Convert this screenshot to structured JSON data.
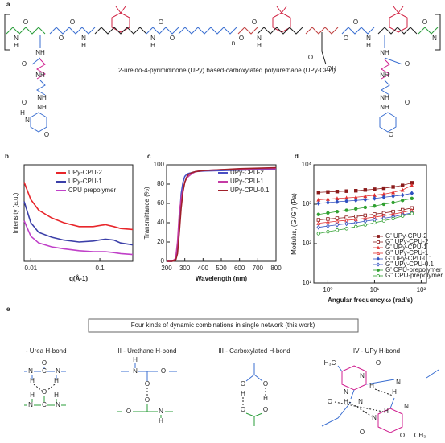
{
  "panel_a": {
    "label": "a",
    "caption": "2-ureido-4-pyrimidinone (UPy) based-carboxylated polyurethane (UPy-CPU)",
    "atoms": [
      "N",
      "H",
      "O",
      "O",
      "O",
      "N",
      "H",
      "N",
      "H",
      "O",
      "O",
      "n",
      "O",
      "O",
      "N",
      "H",
      "O",
      "OH",
      "O",
      "O",
      "N",
      "H",
      "O",
      "N",
      "NH",
      "O",
      "NH",
      "NH",
      "O",
      "NH",
      "N",
      "H",
      "O",
      "NH",
      "O",
      "NH",
      "NH",
      "O",
      "NH",
      "O"
    ]
  },
  "chart_data": [
    {
      "type": "line",
      "panel_label": "b",
      "xlabel": "q(Å-1)",
      "ylabel": "Intensity (a.u.)",
      "xlog": true,
      "xlim": [
        0.008,
        0.3
      ],
      "xticks": [
        0.01,
        0.1
      ],
      "ylim": [
        0,
        10
      ],
      "legend": "upper right",
      "x": [
        0.008,
        0.01,
        0.013,
        0.02,
        0.03,
        0.05,
        0.08,
        0.12,
        0.16,
        0.2,
        0.3
      ],
      "series": [
        {
          "name": "UPy-CPU-2",
          "color": "#e8262b",
          "values": [
            8.2,
            6.4,
            5.3,
            4.5,
            4.0,
            3.6,
            3.6,
            3.8,
            3.6,
            3.4,
            3.3
          ]
        },
        {
          "name": "UPy-CPU-1",
          "color": "#3b3fa8",
          "values": [
            6.2,
            4.0,
            3.0,
            2.5,
            2.2,
            2.0,
            2.1,
            2.3,
            2.2,
            1.9,
            1.7
          ]
        },
        {
          "name": "CPU prepolymer",
          "color": "#c040c8",
          "values": [
            4.2,
            2.6,
            1.9,
            1.5,
            1.3,
            1.1,
            1.0,
            1.0,
            0.9,
            0.8,
            0.7
          ]
        }
      ]
    },
    {
      "type": "line",
      "panel_label": "c",
      "xlabel": "Wavelength (nm)",
      "ylabel": "Transmittance (%)",
      "xlim": [
        200,
        800
      ],
      "xticks": [
        200,
        300,
        400,
        500,
        600,
        700,
        800
      ],
      "ylim": [
        0,
        100
      ],
      "yticks": [
        0,
        20,
        40,
        60,
        80,
        100
      ],
      "legend": "upper right",
      "x": [
        200,
        230,
        250,
        260,
        270,
        280,
        290,
        300,
        310,
        320,
        340,
        360,
        400,
        500,
        600,
        700,
        800
      ],
      "series": [
        {
          "name": "UPy-CPU-2",
          "color": "#4a4fc4",
          "values": [
            0,
            0,
            2,
            10,
            40,
            70,
            82,
            88,
            90,
            91,
            92,
            93,
            93.5,
            94,
            94.5,
            95,
            95
          ]
        },
        {
          "name": "UPy-CPU-1",
          "color": "#c43aa5",
          "values": [
            0,
            0,
            3,
            20,
            50,
            65,
            75,
            82,
            86,
            88,
            91,
            93,
            94,
            95,
            95.5,
            96,
            96
          ]
        },
        {
          "name": "UPy-CPU-0.1",
          "color": "#a0202a",
          "values": [
            0,
            0,
            1,
            8,
            30,
            55,
            72,
            82,
            87,
            90,
            92,
            93,
            94,
            95,
            96,
            96.5,
            97
          ]
        }
      ]
    },
    {
      "type": "line",
      "panel_label": "d",
      "xlabel": "Angular frequency,ω (rad/s)",
      "ylabel": "Modulus, (G'/G'') (Pa)",
      "xlog": true,
      "ylog": true,
      "xlim": [
        0.5,
        130
      ],
      "ylim": [
        10,
        10000
      ],
      "legend": "lower right",
      "xticks": [
        {
          "value": 1,
          "label": "10⁰"
        },
        {
          "value": 10,
          "label": "10¹"
        },
        {
          "value": 100,
          "label": "10²"
        }
      ],
      "yticks": [
        {
          "value": 10,
          "label": "10¹"
        },
        {
          "value": 100,
          "label": "10²"
        },
        {
          "value": 1000,
          "label": "10³"
        },
        {
          "value": 10000,
          "label": "10⁴"
        }
      ],
      "x": [
        0.63,
        1,
        1.58,
        2.51,
        3.98,
        6.31,
        10,
        15.8,
        25.1,
        39.8,
        63.1
      ],
      "series": [
        {
          "name": "G' UPy-CPU-2",
          "color": "#8b1a1a",
          "marker": "square",
          "filled": true,
          "values": [
            2000,
            2050,
            2100,
            2150,
            2200,
            2300,
            2400,
            2550,
            2750,
            3000,
            3500
          ]
        },
        {
          "name": "G'' UPy-CPU-2",
          "color": "#8b1a1a",
          "marker": "square",
          "filled": false,
          "values": [
            400,
            420,
            440,
            460,
            490,
            520,
            560,
            600,
            650,
            720,
            800
          ]
        },
        {
          "name": "G' UPy-CPU-1",
          "color": "#e03030",
          "marker": "triangle",
          "filled": true,
          "values": [
            1300,
            1350,
            1400,
            1450,
            1500,
            1600,
            1700,
            1800,
            2000,
            2300,
            3000
          ]
        },
        {
          "name": "G'' UPy-CPU-1",
          "color": "#e03030",
          "marker": "triangle",
          "filled": false,
          "values": [
            330,
            350,
            370,
            390,
            410,
            440,
            470,
            510,
            560,
            620,
            700
          ]
        },
        {
          "name": "G' UPy-CPU-0.1",
          "color": "#3050c0",
          "marker": "diamond",
          "filled": true,
          "values": [
            1050,
            1100,
            1150,
            1200,
            1250,
            1300,
            1400,
            1500,
            1600,
            1700,
            1900
          ]
        },
        {
          "name": "G'' UPy-CPU-0.1",
          "color": "#3050c0",
          "marker": "diamond",
          "filled": false,
          "values": [
            260,
            280,
            300,
            320,
            340,
            370,
            400,
            440,
            480,
            540,
            600
          ]
        },
        {
          "name": "G' CPU-prepolymer",
          "color": "#30a030",
          "marker": "circle",
          "filled": true,
          "values": [
            550,
            600,
            650,
            700,
            760,
            830,
            900,
            1000,
            1100,
            1250,
            1400
          ]
        },
        {
          "name": "G'' CPU-prepolymer",
          "color": "#30a030",
          "marker": "circle",
          "filled": false,
          "values": [
            180,
            200,
            220,
            240,
            270,
            300,
            340,
            380,
            430,
            500,
            580
          ]
        }
      ]
    }
  ],
  "panel_e": {
    "label": "e",
    "title": "Four kinds of dynamic combinations in single network (this work)",
    "motifs": [
      {
        "name": "I - Urea H-bond",
        "atoms": [
          "O",
          "N",
          "C",
          "N",
          "H",
          "H",
          "O",
          "C",
          "N",
          "N",
          "H",
          "H"
        ]
      },
      {
        "name": "II - Urethane H-bond",
        "atoms": [
          "H",
          "N",
          "O",
          "O",
          "O",
          "O",
          "N",
          "H"
        ]
      },
      {
        "name": "III - Carboxylated H-bond",
        "atoms": [
          "O",
          "H",
          "O",
          "O",
          "O",
          "H"
        ]
      },
      {
        "name": "IV - UPy H-bond",
        "atoms": [
          "H₃C",
          "N",
          "H",
          "O",
          "N",
          "H",
          "N",
          "O",
          "N",
          "H",
          "N",
          "H",
          "N",
          "O",
          "CH₃",
          "O"
        ]
      }
    ]
  }
}
